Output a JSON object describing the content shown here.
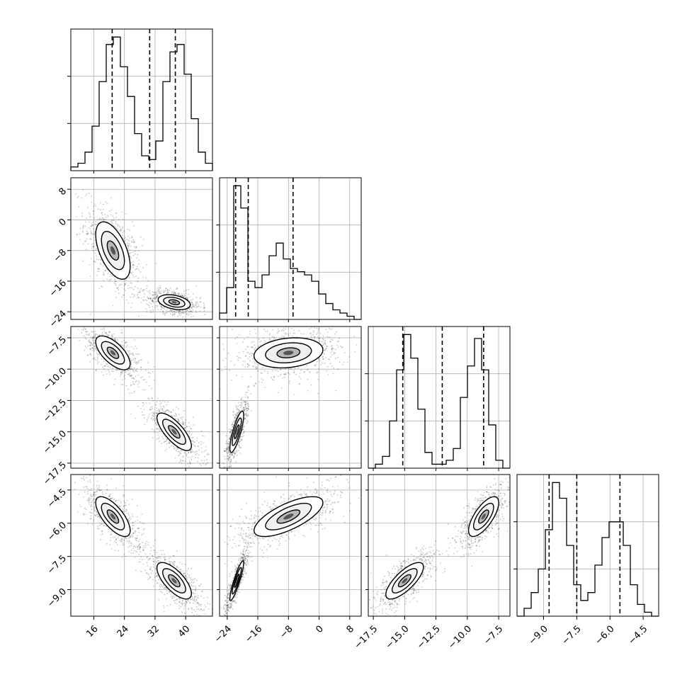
{
  "chart_data": {
    "type": "corner",
    "title": "",
    "grid": true,
    "parameters": [
      {
        "index": 0,
        "range": [
          10,
          47
        ],
        "ticks": [
          16,
          24,
          32,
          40
        ],
        "tick_labels": [
          "16",
          "24",
          "32",
          "40"
        ],
        "quantiles": [
          20.8,
          30.6,
          37.3
        ]
      },
      {
        "index": 1,
        "range": [
          -26,
          11
        ],
        "ticks": [
          -24,
          -16,
          -8,
          0,
          8
        ],
        "tick_labels": [
          "−24",
          "−16",
          "−8",
          "0",
          "8"
        ],
        "quantiles": [
          -21.8,
          -18.5,
          -6.8
        ]
      },
      {
        "index": 2,
        "range": [
          -17.9,
          -6.6
        ],
        "ticks": [
          -17.5,
          -15.0,
          -12.5,
          -10.0,
          -7.5
        ],
        "tick_labels": [
          "−17.5",
          "−15.0",
          "−12.5",
          "−10.0",
          "−7.5"
        ],
        "quantiles": [
          -15.15,
          -12.0,
          -8.7
        ]
      },
      {
        "index": 3,
        "range": [
          -10.2,
          -3.8
        ],
        "ticks": [
          -9.0,
          -7.5,
          -6.0,
          -4.5
        ],
        "tick_labels": [
          "−9.0",
          "−7.5",
          "−6.0",
          "−4.5"
        ],
        "quantiles": [
          -8.75,
          -7.5,
          -5.55
        ]
      }
    ],
    "histograms": [
      {
        "param": 0,
        "bin_edges": [
          10,
          11.85,
          13.7,
          15.55,
          17.4,
          19.25,
          21.1,
          22.95,
          24.8,
          26.65,
          28.5,
          30.35,
          32.2,
          34.05,
          35.9,
          37.75,
          39.6,
          41.45,
          43.3,
          45.15,
          47
        ],
        "counts": [
          1,
          2,
          5,
          12,
          24,
          34,
          36,
          28,
          20,
          10,
          4,
          3,
          8,
          24,
          32,
          34,
          26,
          14,
          5,
          2
        ]
      },
      {
        "param": 1,
        "bin_edges": [
          -26,
          -24.15,
          -22.3,
          -20.45,
          -18.6,
          -16.75,
          -14.9,
          -13.05,
          -11.2,
          -9.35,
          -7.5,
          -5.65,
          -3.8,
          -1.95,
          -0.1,
          1.75,
          3.6,
          5.45,
          7.3,
          9.15,
          11
        ],
        "counts": [
          2,
          10,
          42,
          35,
          12,
          10,
          14,
          20,
          24,
          19,
          16,
          15,
          14,
          12,
          8,
          5,
          3,
          2,
          1,
          0
        ]
      },
      {
        "param": 2,
        "bin_edges": [
          -17.9,
          -17.335,
          -16.77,
          -16.205,
          -15.64,
          -15.075,
          -14.51,
          -13.945,
          -13.38,
          -12.815,
          -12.25,
          -11.685,
          -11.12,
          -10.555,
          -9.99,
          -9.425,
          -8.86,
          -8.295,
          -7.73,
          -7.165,
          -6.6
        ],
        "counts": [
          0,
          1,
          3,
          12,
          25,
          34,
          28,
          15,
          4,
          1,
          1,
          2,
          5,
          18,
          26,
          33,
          25,
          11,
          2,
          0
        ]
      },
      {
        "param": 3,
        "bin_edges": [
          -10.2,
          -9.88,
          -9.56,
          -9.24,
          -8.92,
          -8.6,
          -8.28,
          -7.96,
          -7.64,
          -7.32,
          -7.0,
          -6.68,
          -6.36,
          -6.04,
          -5.72,
          -5.4,
          -5.08,
          -4.76,
          -4.44,
          -4.12,
          -3.8
        ],
        "counts": [
          0,
          2,
          6,
          12,
          22,
          34,
          30,
          18,
          8,
          4,
          6,
          13,
          20,
          24,
          24,
          18,
          8,
          3,
          1,
          0
        ]
      }
    ],
    "pairs": [
      {
        "x_param": 0,
        "y_param": 1,
        "modes": [
          {
            "mean": [
              21.0,
              -8.0
            ],
            "sd": [
              3.0,
              5.0
            ],
            "rho": -0.55,
            "weight": 0.5
          },
          {
            "mean": [
              37.0,
              -21.5
            ],
            "sd": [
              2.8,
              1.3
            ],
            "rho": -0.35,
            "weight": 0.5
          }
        ]
      },
      {
        "x_param": 0,
        "y_param": 2,
        "modes": [
          {
            "mean": [
              21.0,
              -8.7
            ],
            "sd": [
              3.0,
              0.9
            ],
            "rho": -0.65,
            "weight": 0.5
          },
          {
            "mean": [
              37.0,
              -15.0
            ],
            "sd": [
              3.0,
              1.0
            ],
            "rho": -0.75,
            "weight": 0.5
          }
        ]
      },
      {
        "x_param": 1,
        "y_param": 2,
        "modes": [
          {
            "mean": [
              -8.0,
              -8.7
            ],
            "sd": [
              6.0,
              0.8
            ],
            "rho": 0.2,
            "weight": 0.5
          },
          {
            "mean": [
              -21.5,
              -15.0
            ],
            "sd": [
              1.2,
              1.1
            ],
            "rho": 0.8,
            "weight": 0.5
          }
        ]
      },
      {
        "x_param": 0,
        "y_param": 3,
        "modes": [
          {
            "mean": [
              21.0,
              -5.7
            ],
            "sd": [
              3.0,
              0.6
            ],
            "rho": -0.7,
            "weight": 0.5
          },
          {
            "mean": [
              37.0,
              -8.6
            ],
            "sd": [
              3.0,
              0.55
            ],
            "rho": -0.7,
            "weight": 0.5
          }
        ]
      },
      {
        "x_param": 1,
        "y_param": 3,
        "modes": [
          {
            "mean": [
              -8.0,
              -5.7
            ],
            "sd": [
              6.0,
              0.6
            ],
            "rho": 0.7,
            "weight": 0.5
          },
          {
            "mean": [
              -21.5,
              -8.6
            ],
            "sd": [
              1.2,
              0.6
            ],
            "rho": 0.9,
            "weight": 0.5
          }
        ]
      },
      {
        "x_param": 2,
        "y_param": 3,
        "modes": [
          {
            "mean": [
              -8.7,
              -5.7
            ],
            "sd": [
              0.8,
              0.6
            ],
            "rho": 0.7,
            "weight": 0.5
          },
          {
            "mean": [
              -15.0,
              -8.6
            ],
            "sd": [
              1.0,
              0.55
            ],
            "rho": 0.75,
            "weight": 0.5
          }
        ]
      }
    ]
  }
}
